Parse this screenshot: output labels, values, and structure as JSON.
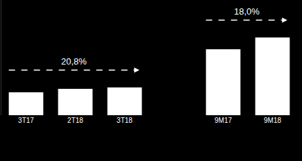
{
  "chart_data": {
    "type": "bar",
    "categories": [
      "3T17",
      "2T18",
      "3T18",
      null,
      "9M17",
      "9M18"
    ],
    "values": [
      33,
      38,
      40,
      null,
      95,
      112
    ],
    "color": "#ffffff",
    "ylim": [
      0,
      166
    ],
    "grid": false,
    "tick_labels": "x",
    "annotations": [
      {
        "text": "20,8%",
        "from": "3T17",
        "to": "3T18"
      },
      {
        "text": "18,0%",
        "from": "9M17",
        "to": "9M18"
      }
    ]
  }
}
